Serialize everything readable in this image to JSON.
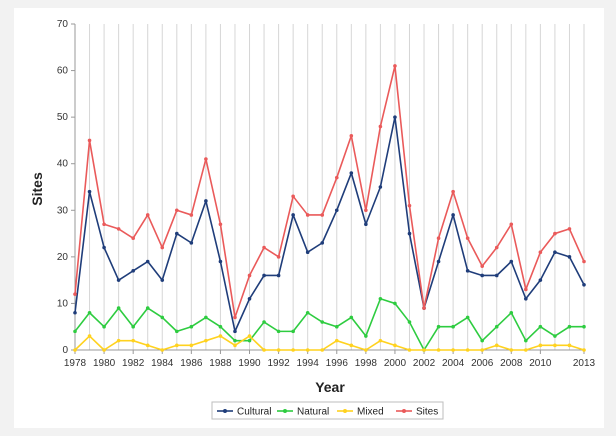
{
  "chart_data": {
    "type": "line",
    "xlabel": "Year",
    "ylabel": "Sites",
    "ylim": [
      0,
      70
    ],
    "yticks": [
      0,
      10,
      20,
      30,
      40,
      50,
      60,
      70
    ],
    "xticks": [
      1978,
      1980,
      1982,
      1984,
      1986,
      1988,
      1990,
      1992,
      1994,
      1996,
      1998,
      2000,
      2002,
      2004,
      2006,
      2008,
      2010,
      2013
    ],
    "x": [
      1978,
      1979,
      1980,
      1981,
      1982,
      1983,
      1984,
      1985,
      1986,
      1987,
      1988,
      1989,
      1990,
      1991,
      1992,
      1993,
      1994,
      1995,
      1996,
      1997,
      1998,
      1999,
      2000,
      2001,
      2002,
      2003,
      2004,
      2005,
      2006,
      2007,
      2008,
      2009,
      2010,
      2011,
      2012,
      2013
    ],
    "grid": "vertical",
    "legend_position": "bottom",
    "series": [
      {
        "name": "Cultural",
        "color": "#1f3d7a",
        "values": [
          8,
          34,
          22,
          15,
          17,
          19,
          15,
          25,
          23,
          32,
          19,
          4,
          11,
          16,
          16,
          29,
          21,
          23,
          30,
          38,
          27,
          35,
          50,
          25,
          9,
          19,
          29,
          17,
          16,
          16,
          19,
          11,
          15,
          21,
          20,
          14
        ]
      },
      {
        "name": "Natural",
        "color": "#2ecc40",
        "values": [
          4,
          8,
          5,
          9,
          5,
          9,
          7,
          4,
          5,
          7,
          5,
          2,
          2,
          6,
          4,
          4,
          8,
          6,
          5,
          7,
          3,
          11,
          10,
          6,
          0,
          5,
          5,
          7,
          2,
          5,
          8,
          2,
          5,
          3,
          5,
          5
        ]
      },
      {
        "name": "Mixed",
        "color": "#ffd21f",
        "values": [
          0,
          3,
          0,
          2,
          2,
          1,
          0,
          1,
          1,
          2,
          3,
          1,
          3,
          0,
          0,
          0,
          0,
          0,
          2,
          1,
          0,
          2,
          1,
          0,
          0,
          0,
          0,
          0,
          0,
          1,
          0,
          0,
          1,
          1,
          1,
          0
        ]
      },
      {
        "name": "Sites",
        "color": "#ea5a5a",
        "values": [
          12,
          45,
          27,
          26,
          24,
          29,
          22,
          30,
          29,
          41,
          27,
          7,
          16,
          22,
          20,
          33,
          29,
          29,
          37,
          46,
          30,
          48,
          61,
          31,
          9,
          24,
          34,
          24,
          18,
          22,
          27,
          13,
          21,
          25,
          26,
          19
        ]
      }
    ]
  }
}
